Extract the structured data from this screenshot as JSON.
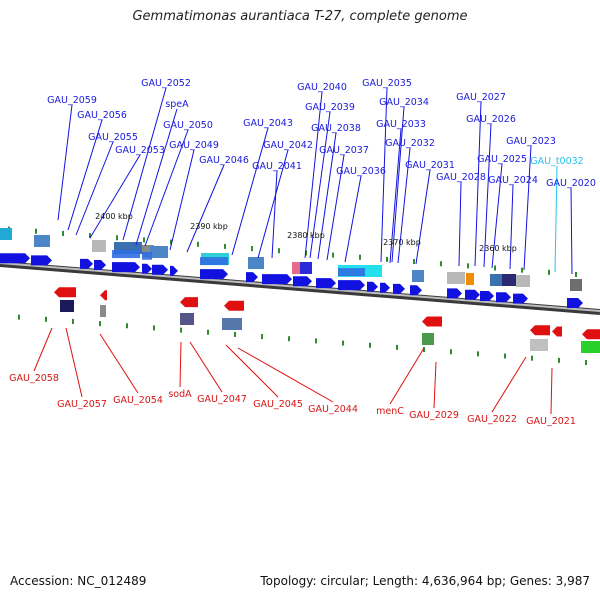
{
  "title": "Gemmatimonas aurantiaca T-27, complete genome",
  "footer": {
    "accession": "Accession: NC_012489",
    "summary": "Topology: circular; Length: 4,636,964 bp; Genes: 3,987"
  },
  "colors": {
    "forward_gene": "#1212e0",
    "reverse_gene": "#e01010",
    "rna_gene": "#23c5f0",
    "backbone": "#707070",
    "tick_marks": "#2e8b2e"
  },
  "scale_ticks": [
    {
      "label": "2400 kbp"
    },
    {
      "label": "2390 kbp"
    },
    {
      "label": "2380 kbp"
    },
    {
      "label": "2370 kbp"
    },
    {
      "label": "2360 kbp"
    }
  ],
  "forward_labels": [
    {
      "text": "GAU_2059",
      "kind": "cds"
    },
    {
      "text": "GAU_2056",
      "kind": "cds"
    },
    {
      "text": "GAU_2055",
      "kind": "cds"
    },
    {
      "text": "GAU_2053",
      "kind": "cds"
    },
    {
      "text": "GAU_2052",
      "kind": "cds"
    },
    {
      "text": "speA",
      "kind": "cds"
    },
    {
      "text": "GAU_2050",
      "kind": "cds"
    },
    {
      "text": "GAU_2049",
      "kind": "cds"
    },
    {
      "text": "GAU_2046",
      "kind": "cds"
    },
    {
      "text": "GAU_2043",
      "kind": "cds"
    },
    {
      "text": "GAU_2042",
      "kind": "cds"
    },
    {
      "text": "GAU_2041",
      "kind": "cds"
    },
    {
      "text": "GAU_2040",
      "kind": "cds"
    },
    {
      "text": "GAU_2039",
      "kind": "cds"
    },
    {
      "text": "GAU_2038",
      "kind": "cds"
    },
    {
      "text": "GAU_2037",
      "kind": "cds"
    },
    {
      "text": "GAU_2036",
      "kind": "cds"
    },
    {
      "text": "GAU_2035",
      "kind": "cds"
    },
    {
      "text": "GAU_2034",
      "kind": "cds"
    },
    {
      "text": "GAU_2033",
      "kind": "cds"
    },
    {
      "text": "GAU_2032",
      "kind": "cds"
    },
    {
      "text": "GAU_2031",
      "kind": "cds"
    },
    {
      "text": "GAU_2028",
      "kind": "cds"
    },
    {
      "text": "GAU_2027",
      "kind": "cds"
    },
    {
      "text": "GAU_2026",
      "kind": "cds"
    },
    {
      "text": "GAU_2025",
      "kind": "cds"
    },
    {
      "text": "GAU_2024",
      "kind": "cds"
    },
    {
      "text": "GAU_2023",
      "kind": "cds"
    },
    {
      "text": "GAU_t0032",
      "kind": "rna"
    },
    {
      "text": "GAU_2020",
      "kind": "cds"
    }
  ],
  "reverse_labels": [
    {
      "text": "GAU_2058"
    },
    {
      "text": "GAU_2057"
    },
    {
      "text": "GAU_2054"
    },
    {
      "text": "sodA"
    },
    {
      "text": "GAU_2047"
    },
    {
      "text": "GAU_2045"
    },
    {
      "text": "GAU_2044"
    },
    {
      "text": "menC"
    },
    {
      "text": "GAU_2029"
    },
    {
      "text": "GAU_2022"
    },
    {
      "text": "GAU_2021"
    }
  ]
}
